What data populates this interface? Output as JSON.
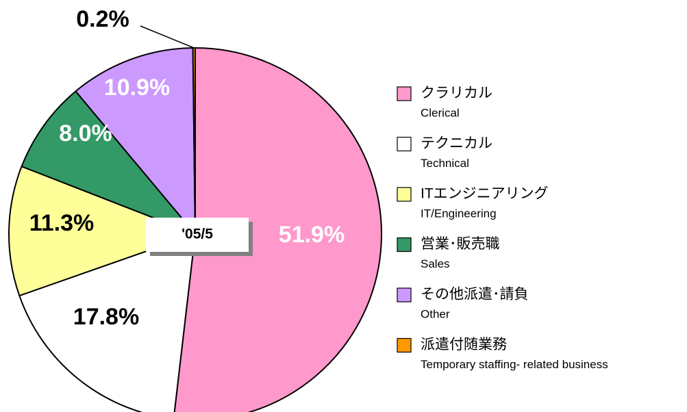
{
  "chart_data": {
    "type": "pie",
    "categories": [
      "クラリカル",
      "テクニカル",
      "ITエンジニアリング",
      "営業･販売職",
      "その他派遣･請負",
      "派遣付随業務"
    ],
    "categories_en": [
      "Clerical",
      "Technical",
      "IT/Engineering",
      "Sales",
      "Other",
      "Temporary staffing- related business"
    ],
    "values": [
      51.9,
      17.8,
      11.3,
      8.0,
      10.9,
      0.2
    ],
    "value_labels": [
      "51.9%",
      "17.8%",
      "11.3%",
      "8.0%",
      "10.9%",
      "0.2%"
    ],
    "colors": [
      "#ff99cc",
      "#ffffff",
      "#ffff99",
      "#339966",
      "#cc99ff",
      "#ff9900"
    ],
    "label_colors": [
      "#ffffff",
      "#000000",
      "#000000",
      "#ffffff",
      "#ffffff",
      "#000000"
    ],
    "center_label": "'05/5"
  }
}
